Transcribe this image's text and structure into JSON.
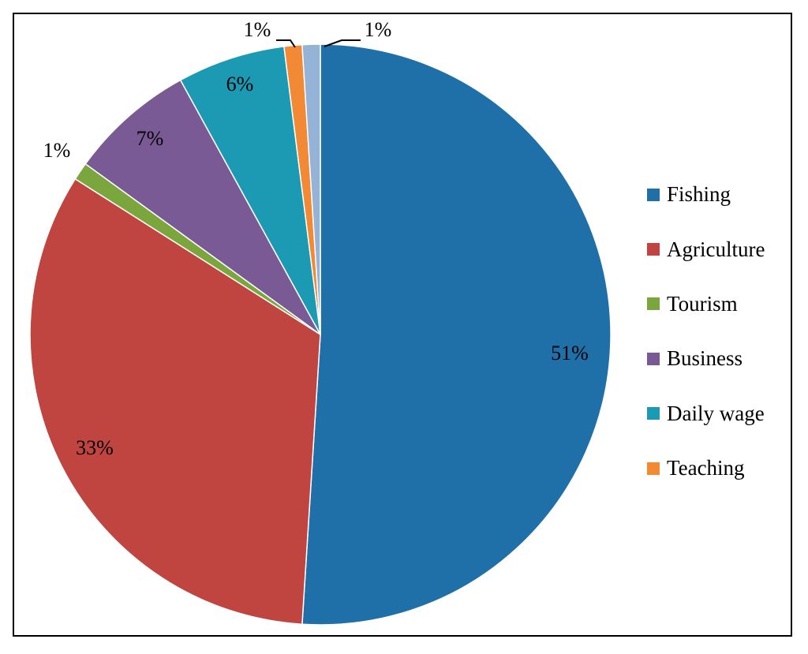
{
  "chart_data": {
    "type": "pie",
    "title": "",
    "slices": [
      {
        "name": "Fishing",
        "value": 51,
        "label": "51%",
        "color": "#1f6fa8"
      },
      {
        "name": "Agriculture",
        "value": 33,
        "label": "33%",
        "color": "#c0443f"
      },
      {
        "name": "Tourism",
        "value": 1,
        "label": "1%",
        "color": "#7ba63e"
      },
      {
        "name": "Business",
        "value": 7,
        "label": "7%",
        "color": "#7a5a95"
      },
      {
        "name": "Daily wage",
        "value": 6,
        "label": "6%",
        "color": "#1c9ab3"
      },
      {
        "name": "Teaching",
        "value": 1,
        "label": "1%",
        "color": "#f28a35"
      },
      {
        "name": "",
        "value": 1,
        "label": "1%",
        "color": "#94b3d6"
      }
    ],
    "legend": {
      "placement": "right",
      "entries": [
        "Fishing",
        "Agriculture",
        "Tourism",
        "Business",
        "Daily wage",
        "Teaching"
      ]
    }
  }
}
